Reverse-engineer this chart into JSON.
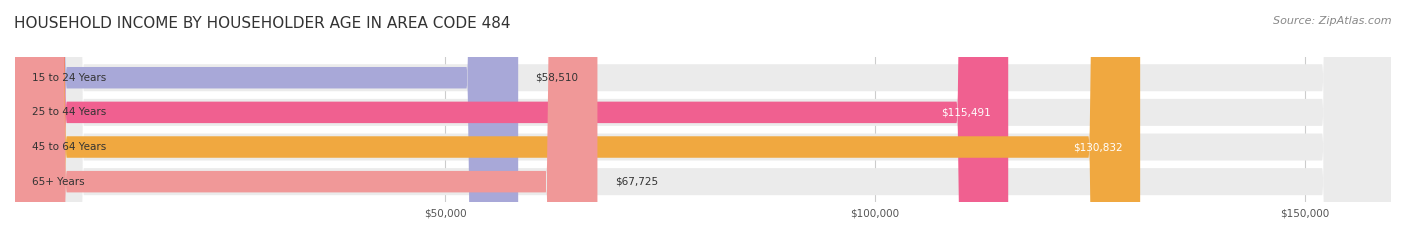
{
  "title": "HOUSEHOLD INCOME BY HOUSEHOLDER AGE IN AREA CODE 484",
  "source": "Source: ZipAtlas.com",
  "categories": [
    "15 to 24 Years",
    "25 to 44 Years",
    "45 to 64 Years",
    "65+ Years"
  ],
  "values": [
    58510,
    115491,
    130832,
    67725
  ],
  "labels": [
    "$58,510",
    "$115,491",
    "$130,832",
    "$67,725"
  ],
  "bar_colors": [
    "#a8a8d8",
    "#f06090",
    "#f0a840",
    "#f09898"
  ],
  "bar_bg_color": "#f0f0f0",
  "background_color": "#ffffff",
  "xmax": 160000,
  "xticks": [
    0,
    50000,
    100000,
    150000
  ],
  "xtick_labels": [
    "$50,000",
    "$100,000",
    "$150,000"
  ],
  "title_fontsize": 11,
  "source_fontsize": 8
}
